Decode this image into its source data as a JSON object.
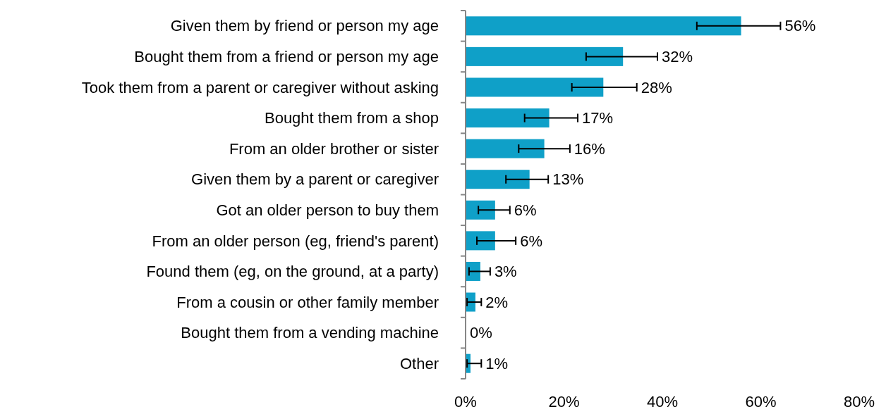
{
  "chart_data": {
    "type": "bar",
    "orientation": "horizontal",
    "categories": [
      "Given them by friend or person my age",
      "Bought them from a friend or person my age",
      "Took them from a parent or caregiver without asking",
      "Bought them from a shop",
      "From an older brother or sister",
      "Given them by a parent or caregiver",
      "Got an older person to buy them",
      "From an older person (eg, friend's parent)",
      "Found them (eg, on the ground, at a party)",
      "From a cousin or other family member",
      "Bought them from a vending machine",
      "Other"
    ],
    "values": [
      56,
      32,
      28,
      17,
      16,
      13,
      6,
      6,
      3,
      2,
      0,
      1
    ],
    "value_labels": [
      "56%",
      "32%",
      "28%",
      "17%",
      "16%",
      "13%",
      "6%",
      "6%",
      "3%",
      "2%",
      "0%",
      "1%"
    ],
    "errors": [
      [
        47,
        64
      ],
      [
        24.5,
        39
      ],
      [
        21.6,
        34.8
      ],
      [
        12,
        22.8
      ],
      [
        10.8,
        21.2
      ],
      [
        8.2,
        16.8
      ],
      [
        2.6,
        9
      ],
      [
        2.3,
        10.2
      ],
      [
        0.7,
        5
      ],
      [
        0.3,
        3.2
      ],
      null,
      [
        0.3,
        3.2
      ]
    ],
    "color": "#0fa0c8",
    "xlim": [
      0,
      80
    ],
    "xticks": [
      {
        "value": 0,
        "label": "0%"
      },
      {
        "value": 20,
        "label": "20%"
      },
      {
        "value": 40,
        "label": "40%"
      },
      {
        "value": 60,
        "label": "60%"
      },
      {
        "value": 80,
        "label": "80%"
      }
    ],
    "grid": false
  }
}
